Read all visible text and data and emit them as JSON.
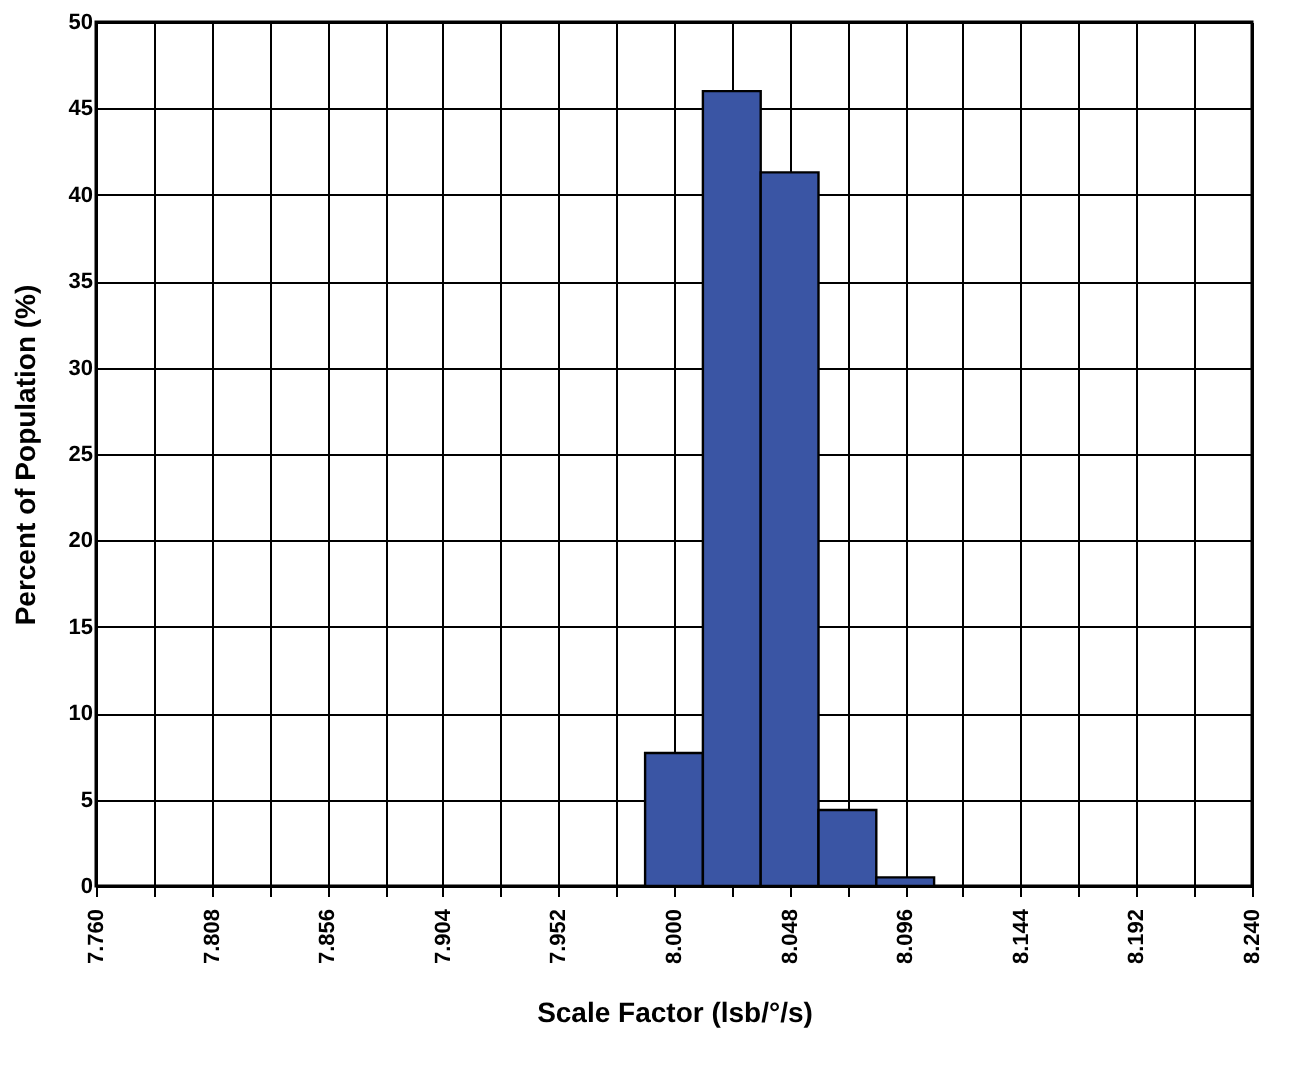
{
  "chart_data": {
    "type": "histogram",
    "xlabel": "Scale Factor (lsb/°/s)",
    "ylabel": "Percent of Population (%)",
    "bins": [
      7.988,
      8.012,
      8.036,
      8.06,
      8.084,
      8.108
    ],
    "values": [
      7.7,
      46,
      41.3,
      4.4,
      0.5
    ],
    "color": "#3a55a4",
    "xlim": [
      7.76,
      8.24
    ],
    "xticks": [
      {
        "value": 7.76,
        "label": "7.760"
      },
      {
        "value": 7.784,
        "label": null
      },
      {
        "value": 7.808,
        "label": "7.808"
      },
      {
        "value": 7.832,
        "label": null
      },
      {
        "value": 7.856,
        "label": "7.856"
      },
      {
        "value": 7.88,
        "label": null
      },
      {
        "value": 7.904,
        "label": "7.904"
      },
      {
        "value": 7.928,
        "label": null
      },
      {
        "value": 7.952,
        "label": "7.952"
      },
      {
        "value": 7.976,
        "label": null
      },
      {
        "value": 8.0,
        "label": "8.000"
      },
      {
        "value": 8.024,
        "label": null
      },
      {
        "value": 8.048,
        "label": "8.048"
      },
      {
        "value": 8.072,
        "label": null
      },
      {
        "value": 8.096,
        "label": "8.096"
      },
      {
        "value": 8.12,
        "label": null
      },
      {
        "value": 8.144,
        "label": "8.144"
      },
      {
        "value": 8.168,
        "label": null
      },
      {
        "value": 8.192,
        "label": "8.192"
      },
      {
        "value": 8.216,
        "label": null
      },
      {
        "value": 8.24,
        "label": "8.240"
      }
    ],
    "ylim": [
      0,
      50
    ],
    "yticks": [
      0,
      5,
      10,
      15,
      20,
      25,
      30,
      35,
      40,
      45,
      50
    ],
    "grid": true
  }
}
